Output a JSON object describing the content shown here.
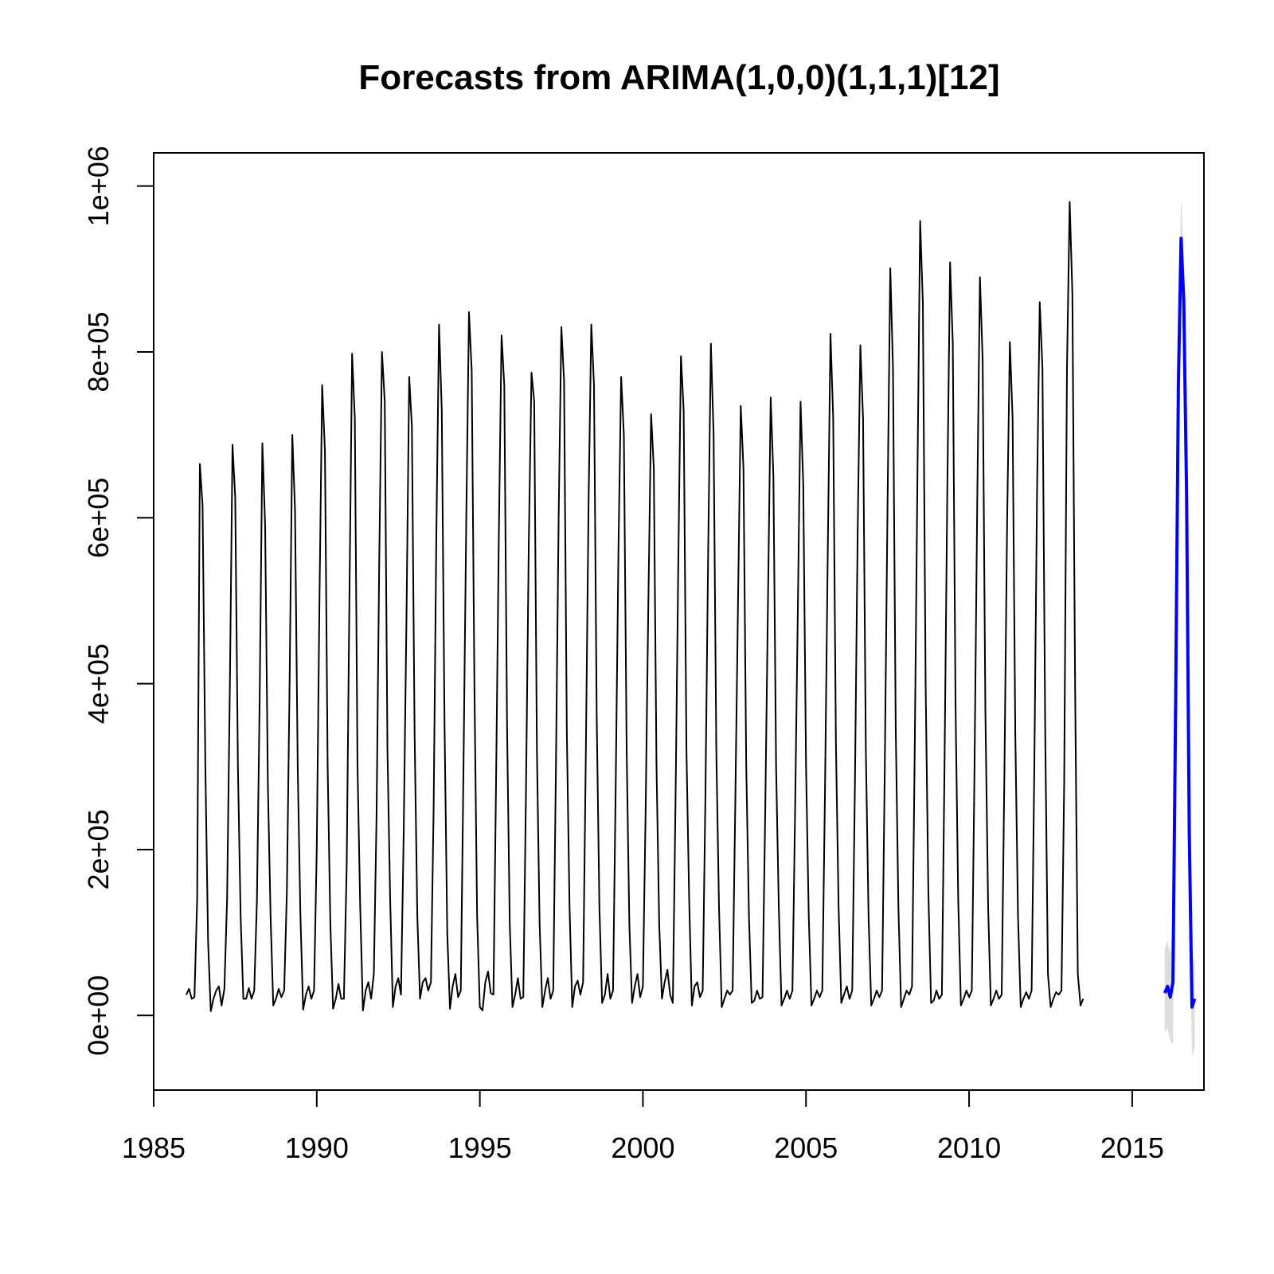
{
  "chart_data": {
    "type": "line",
    "title": "Forecasts from ARIMA(1,0,0)(1,1,1)[12]",
    "xlabel": "",
    "ylabel": "",
    "xlim": [
      1985,
      2017.2
    ],
    "ylim": [
      -90000,
      1040000
    ],
    "x_ticks": [
      1985,
      1990,
      1995,
      2000,
      2005,
      2010,
      2015
    ],
    "x_tick_labels": [
      "1985",
      "1990",
      "1995",
      "2000",
      "2005",
      "2010",
      "2015"
    ],
    "y_ticks": [
      0,
      200000,
      400000,
      600000,
      800000,
      1000000
    ],
    "y_tick_labels": [
      "0e+00",
      "2e+05",
      "4e+05",
      "6e+05",
      "8e+05",
      "1e+06"
    ],
    "grid": false,
    "colors": {
      "history": "#000000",
      "forecast": "#0000ff",
      "interval": "#dddddd"
    },
    "history": {
      "start": [
        1986,
        1
      ],
      "frequency": 12,
      "values": [
        25000,
        32000,
        20000,
        22000,
        140000,
        665000,
        615000,
        300000,
        90000,
        5000,
        20000,
        30000,
        35000,
        12000,
        32000,
        140000,
        390000,
        688000,
        625000,
        300000,
        120000,
        20000,
        20000,
        33000,
        20000,
        30000,
        140000,
        380000,
        690000,
        590000,
        280000,
        120000,
        12000,
        20000,
        32000,
        22000,
        30000,
        150000,
        400000,
        700000,
        610000,
        300000,
        120000,
        7000,
        25000,
        35000,
        20000,
        30000,
        200000,
        500000,
        760000,
        680000,
        300000,
        110000,
        8000,
        20000,
        38000,
        20000,
        20000,
        180000,
        500000,
        798000,
        720000,
        300000,
        130000,
        6000,
        30000,
        40000,
        20000,
        50000,
        240000,
        550000,
        800000,
        740000,
        320000,
        140000,
        10000,
        35000,
        45000,
        25000,
        220000,
        480000,
        770000,
        710000,
        340000,
        120000,
        20000,
        40000,
        45000,
        30000,
        40000,
        250000,
        580000,
        833000,
        730000,
        350000,
        100000,
        8000,
        35000,
        50000,
        22000,
        30000,
        300000,
        600000,
        848000,
        778000,
        400000,
        120000,
        10000,
        6000,
        40000,
        53000,
        27000,
        25000,
        290000,
        580000,
        820000,
        760000,
        350000,
        110000,
        10000,
        25000,
        45000,
        20000,
        22000,
        280000,
        570000,
        775000,
        740000,
        320000,
        110000,
        10000,
        30000,
        45000,
        20000,
        30000,
        300000,
        600000,
        830000,
        765000,
        340000,
        130000,
        10000,
        35000,
        42000,
        25000,
        40000,
        320000,
        620000,
        833000,
        760000,
        360000,
        130000,
        15000,
        25000,
        50000,
        20000,
        30000,
        280000,
        560000,
        770000,
        700000,
        320000,
        110000,
        15000,
        35000,
        50000,
        22000,
        35000,
        250000,
        500000,
        725000,
        660000,
        300000,
        110000,
        20000,
        40000,
        55000,
        25000,
        15000,
        260000,
        540000,
        795000,
        730000,
        320000,
        140000,
        12000,
        35000,
        40000,
        22000,
        30000,
        270000,
        560000,
        810000,
        700000,
        320000,
        130000,
        10000,
        20000,
        30000,
        25000,
        30000,
        260000,
        500000,
        735000,
        660000,
        300000,
        120000,
        15000,
        18000,
        30000,
        20000,
        22000,
        250000,
        500000,
        745000,
        650000,
        300000,
        130000,
        12000,
        20000,
        30000,
        20000,
        30000,
        250000,
        490000,
        740000,
        640000,
        300000,
        120000,
        12000,
        20000,
        30000,
        22000,
        30000,
        270000,
        560000,
        822000,
        720000,
        330000,
        130000,
        15000,
        25000,
        35000,
        20000,
        30000,
        280000,
        580000,
        808000,
        720000,
        320000,
        120000,
        12000,
        20000,
        30000,
        22000,
        30000,
        300000,
        620000,
        901000,
        780000,
        350000,
        130000,
        10000,
        20000,
        30000,
        25000,
        35000,
        320000,
        650000,
        958000,
        860000,
        400000,
        150000,
        15000,
        18000,
        30000,
        20000,
        25000,
        310000,
        640000,
        908000,
        810000,
        380000,
        140000,
        12000,
        20000,
        30000,
        22000,
        30000,
        300000,
        620000,
        890000,
        790000,
        370000,
        130000,
        12000,
        20000,
        30000,
        20000,
        25000,
        290000,
        600000,
        812000,
        720000,
        340000,
        120000,
        10000,
        20000,
        28000,
        20000,
        30000,
        300000,
        630000,
        860000,
        780000,
        350000,
        50000,
        10000,
        20000,
        28000,
        25000,
        30000,
        280000,
        780000,
        981000,
        870000,
        400000,
        50000,
        12000,
        20000
      ]
    },
    "forecast": {
      "start": [
        2016,
        1
      ],
      "frequency": 12,
      "values": [
        27000,
        35000,
        22000,
        40000,
        380000,
        760000,
        937000,
        860000,
        630000,
        220000,
        10000,
        20000
      ],
      "lower": [
        -20000,
        -15000,
        -30000,
        -35000,
        300000,
        700000,
        880000,
        800000,
        560000,
        150000,
        -50000,
        -40000
      ],
      "upper": [
        80000,
        90000,
        75000,
        110000,
        460000,
        820000,
        985000,
        920000,
        700000,
        290000,
        60000,
        70000
      ]
    }
  }
}
